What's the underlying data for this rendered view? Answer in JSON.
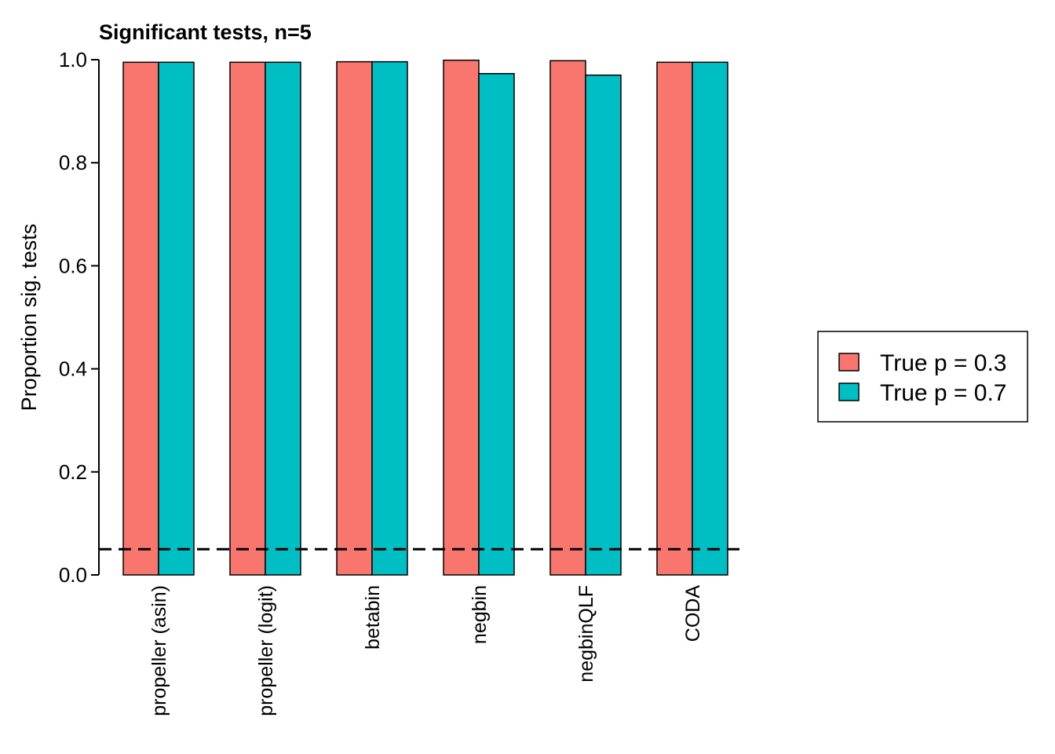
{
  "chart_data": {
    "type": "bar",
    "title": "Significant tests, n=5",
    "xlabel": "",
    "ylabel": "Proportion sig. tests",
    "ylim": [
      0,
      1
    ],
    "yticks": [
      "0.0",
      "0.2",
      "0.4",
      "0.6",
      "0.8",
      "1.0"
    ],
    "categories": [
      "propeller (asin)",
      "propeller (logit)",
      "betabin",
      "negbin",
      "negbinQLF",
      "CODA"
    ],
    "series": [
      {
        "name": "True p = 0.3",
        "color": "#F8766D",
        "values": [
          0.995,
          0.995,
          0.996,
          0.999,
          0.998,
          0.995
        ]
      },
      {
        "name": "True p = 0.7",
        "color": "#00BFC4",
        "values": [
          0.995,
          0.995,
          0.996,
          0.973,
          0.97,
          0.995
        ]
      }
    ],
    "reference_line": {
      "y": 0.05,
      "style": "dashed"
    },
    "legend_position": "right",
    "grid": false
  }
}
